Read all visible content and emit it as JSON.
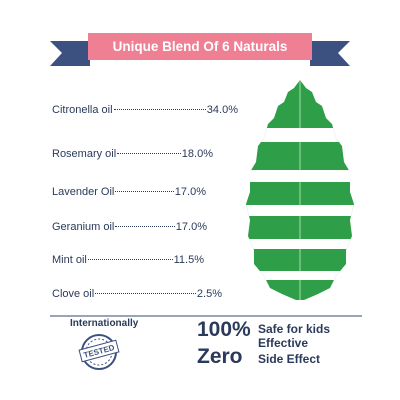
{
  "banner": {
    "title": "Unique Blend Of 6 Naturals"
  },
  "ingredients": [
    {
      "name": "Citronella oil",
      "value": "34.0%"
    },
    {
      "name": "Rosemary oil",
      "value": "18.0%"
    },
    {
      "name": "Lavender Oil",
      "value": "17.0%"
    },
    {
      "name": "Geranium oil",
      "value": "17.0%"
    },
    {
      "name": "Mint oil",
      "value": "11.5%"
    },
    {
      "name": "Clove oil",
      "value": "2.5%"
    }
  ],
  "footer": {
    "certified": "Internationally",
    "stamp": "TESTED",
    "percent": "100%",
    "safe": "Safe for kids",
    "effective": "Effective",
    "zero": "Zero",
    "side_effect": "Side Effect"
  }
}
